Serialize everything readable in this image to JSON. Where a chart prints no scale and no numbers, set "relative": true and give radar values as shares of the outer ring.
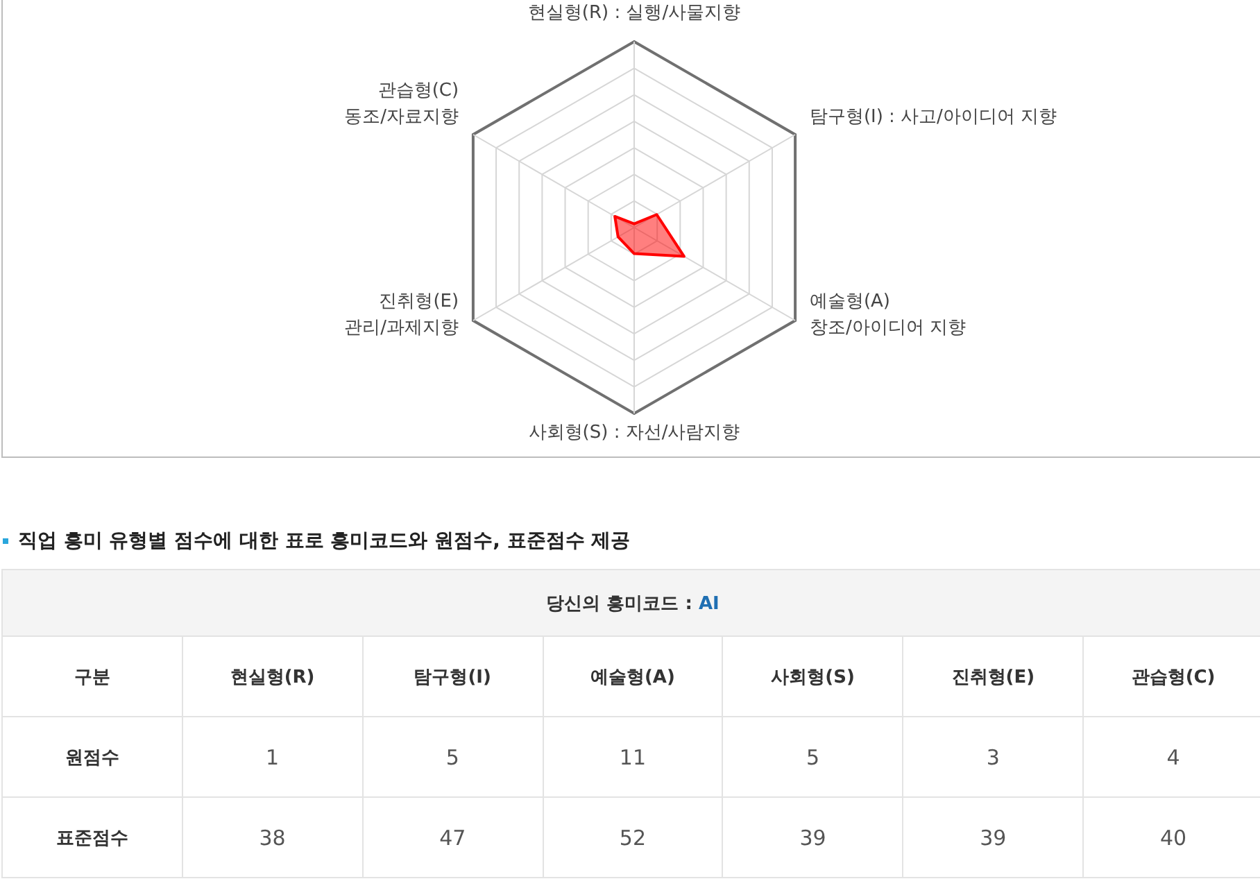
{
  "chart_data": [
    {
      "type": "radar",
      "categories": [
        "현실형(R) : 실행/사물지향",
        "탐구형(I) : 사고/아이디어 지향",
        "예술형(A)\n창조/아이디어 지향",
        "사회형(S) : 자선/사람지향",
        "진취형(E)\n관리/과제지향",
        "관습형(C)\n동조/자료지향"
      ],
      "relative": true,
      "grid": true,
      "series": [
        {
          "color": "#ff0000",
          "values": [
            0.02,
            0.14,
            0.31,
            0.14,
            0.1,
            0.12
          ]
        }
      ]
    },
    {
      "type": "other",
      "title": "직업 흥미 유형별 점수에 대한 표로 흥미코드와 원점수, 표준점수 제공",
      "subtitle": "당신의 흥미코드 : AI",
      "legend_title": "구분",
      "categories": [
        "현실형(R)",
        "탐구형(I)",
        "예술형(A)",
        "사회형(S)",
        "진취형(E)",
        "관습형(C)"
      ],
      "data_labels": true,
      "series": [
        {
          "name": "원점수",
          "values": [
            1,
            5,
            11,
            5,
            3,
            4
          ]
        },
        {
          "name": "표준점수",
          "values": [
            38,
            47,
            52,
            39,
            39,
            40
          ]
        }
      ]
    }
  ]
}
